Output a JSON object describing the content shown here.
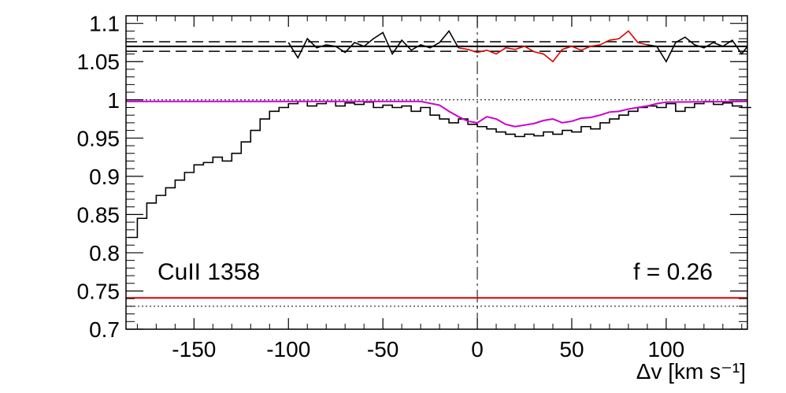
{
  "chart_data": {
    "type": "line",
    "xlabel": "Δv [km s⁻¹]",
    "xlim": [
      -186,
      143
    ],
    "ylim": [
      0.7,
      1.11
    ],
    "x_ticks": [
      -150,
      -100,
      -50,
      0,
      50,
      100
    ],
    "x_tick_labels": [
      "-150",
      "-100",
      "-50",
      "0",
      "50",
      "100"
    ],
    "y_ticks": [
      0.7,
      0.75,
      0.8,
      0.85,
      0.9,
      0.95,
      1,
      1.05,
      1.1
    ],
    "y_tick_labels": [
      "0.7",
      "0.75",
      "0.8",
      "0.85",
      "0.9",
      "0.95",
      "1",
      "1.05",
      "1.1"
    ],
    "annotations": {
      "ion_label": "CuII 1358",
      "f_label": "f = 0.26"
    },
    "reference_lines": {
      "continuum": 1.0,
      "upper_solid": 1.07,
      "upper_dashed": [
        1.076,
        1.0635
      ],
      "lower_solid": 0.741,
      "lower_dotted": 0.73,
      "zero_velocity": 0
    },
    "series": [
      {
        "role": "flux",
        "color": "#000000",
        "x": [
          -185,
          -180,
          -175,
          -170,
          -165,
          -160,
          -155,
          -150,
          -145,
          -140,
          -135,
          -130,
          -125,
          -120,
          -115,
          -110,
          -105,
          -100,
          -95,
          -90,
          -85,
          -80,
          -75,
          -70,
          -65,
          -60,
          -55,
          -50,
          -45,
          -40,
          -35,
          -30,
          -25,
          -20,
          -15,
          -10,
          -5,
          0,
          5,
          10,
          15,
          20,
          25,
          30,
          35,
          40,
          45,
          50,
          55,
          60,
          65,
          70,
          75,
          80,
          85,
          90,
          95,
          100,
          105,
          110,
          115,
          120,
          125,
          130,
          135,
          140
        ],
        "y": [
          0.82,
          0.845,
          0.865,
          0.875,
          0.885,
          0.895,
          0.905,
          0.915,
          0.918,
          0.925,
          0.92,
          0.93,
          0.945,
          0.96,
          0.975,
          0.985,
          0.99,
          0.995,
          0.998,
          0.992,
          0.995,
          0.998,
          0.992,
          0.996,
          0.994,
          0.997,
          0.99,
          0.993,
          0.99,
          0.992,
          0.985,
          0.99,
          0.98,
          0.975,
          0.97,
          0.975,
          0.968,
          0.965,
          0.962,
          0.958,
          0.955,
          0.952,
          0.955,
          0.953,
          0.958,
          0.955,
          0.96,
          0.958,
          0.965,
          0.962,
          0.97,
          0.975,
          0.98,
          0.985,
          0.99,
          0.992,
          0.99,
          0.995,
          0.985,
          0.99,
          0.995,
          0.998,
          0.994,
          0.996,
          0.992,
          0.99
        ]
      },
      {
        "role": "model",
        "color": "#cc00cc",
        "x": [
          -186,
          -30,
          -20,
          -15,
          -10,
          -5,
          0,
          5,
          10,
          15,
          20,
          25,
          30,
          35,
          40,
          45,
          50,
          55,
          60,
          65,
          70,
          75,
          80,
          85,
          90,
          95,
          100,
          143
        ],
        "y": [
          0.998,
          0.998,
          0.993,
          0.985,
          0.978,
          0.972,
          0.97,
          0.978,
          0.975,
          0.968,
          0.965,
          0.967,
          0.969,
          0.973,
          0.975,
          0.97,
          0.972,
          0.976,
          0.977,
          0.98,
          0.984,
          0.985,
          0.988,
          0.99,
          0.992,
          0.995,
          0.997,
          0.998
        ]
      },
      {
        "role": "residual",
        "color": "#000000",
        "x": [
          -100,
          -95,
          -90,
          -85,
          -80,
          -75,
          -70,
          -65,
          -60,
          -55,
          -50,
          -45,
          -40,
          -35,
          -30,
          -25,
          -20,
          -15,
          -10
        ],
        "y": [
          1.075,
          1.055,
          1.08,
          1.068,
          1.072,
          1.07,
          1.062,
          1.075,
          1.07,
          1.08,
          1.088,
          1.06,
          1.078,
          1.065,
          1.072,
          1.068,
          1.075,
          1.09,
          1.068
        ]
      },
      {
        "role": "residual-fit-region",
        "color": "#dd0000",
        "x": [
          -10,
          -5,
          0,
          5,
          10,
          15,
          20,
          25,
          30,
          35,
          40,
          45,
          50,
          55,
          60,
          65,
          70,
          75,
          80,
          85,
          90
        ],
        "y": [
          1.068,
          1.066,
          1.062,
          1.065,
          1.06,
          1.068,
          1.066,
          1.07,
          1.063,
          1.06,
          1.05,
          1.066,
          1.07,
          1.065,
          1.07,
          1.072,
          1.078,
          1.08,
          1.09,
          1.075,
          1.072
        ]
      },
      {
        "role": "residual",
        "color": "#000000",
        "x": [
          90,
          95,
          100,
          105,
          110,
          115,
          120,
          125,
          130,
          135,
          140,
          143
        ],
        "y": [
          1.072,
          1.07,
          1.05,
          1.075,
          1.082,
          1.072,
          1.068,
          1.075,
          1.07,
          1.078,
          1.06,
          1.07
        ]
      },
      {
        "role": "lower-red",
        "color": "#dd0000",
        "x": [
          -186,
          143
        ],
        "y": [
          0.741,
          0.741
        ]
      }
    ]
  }
}
